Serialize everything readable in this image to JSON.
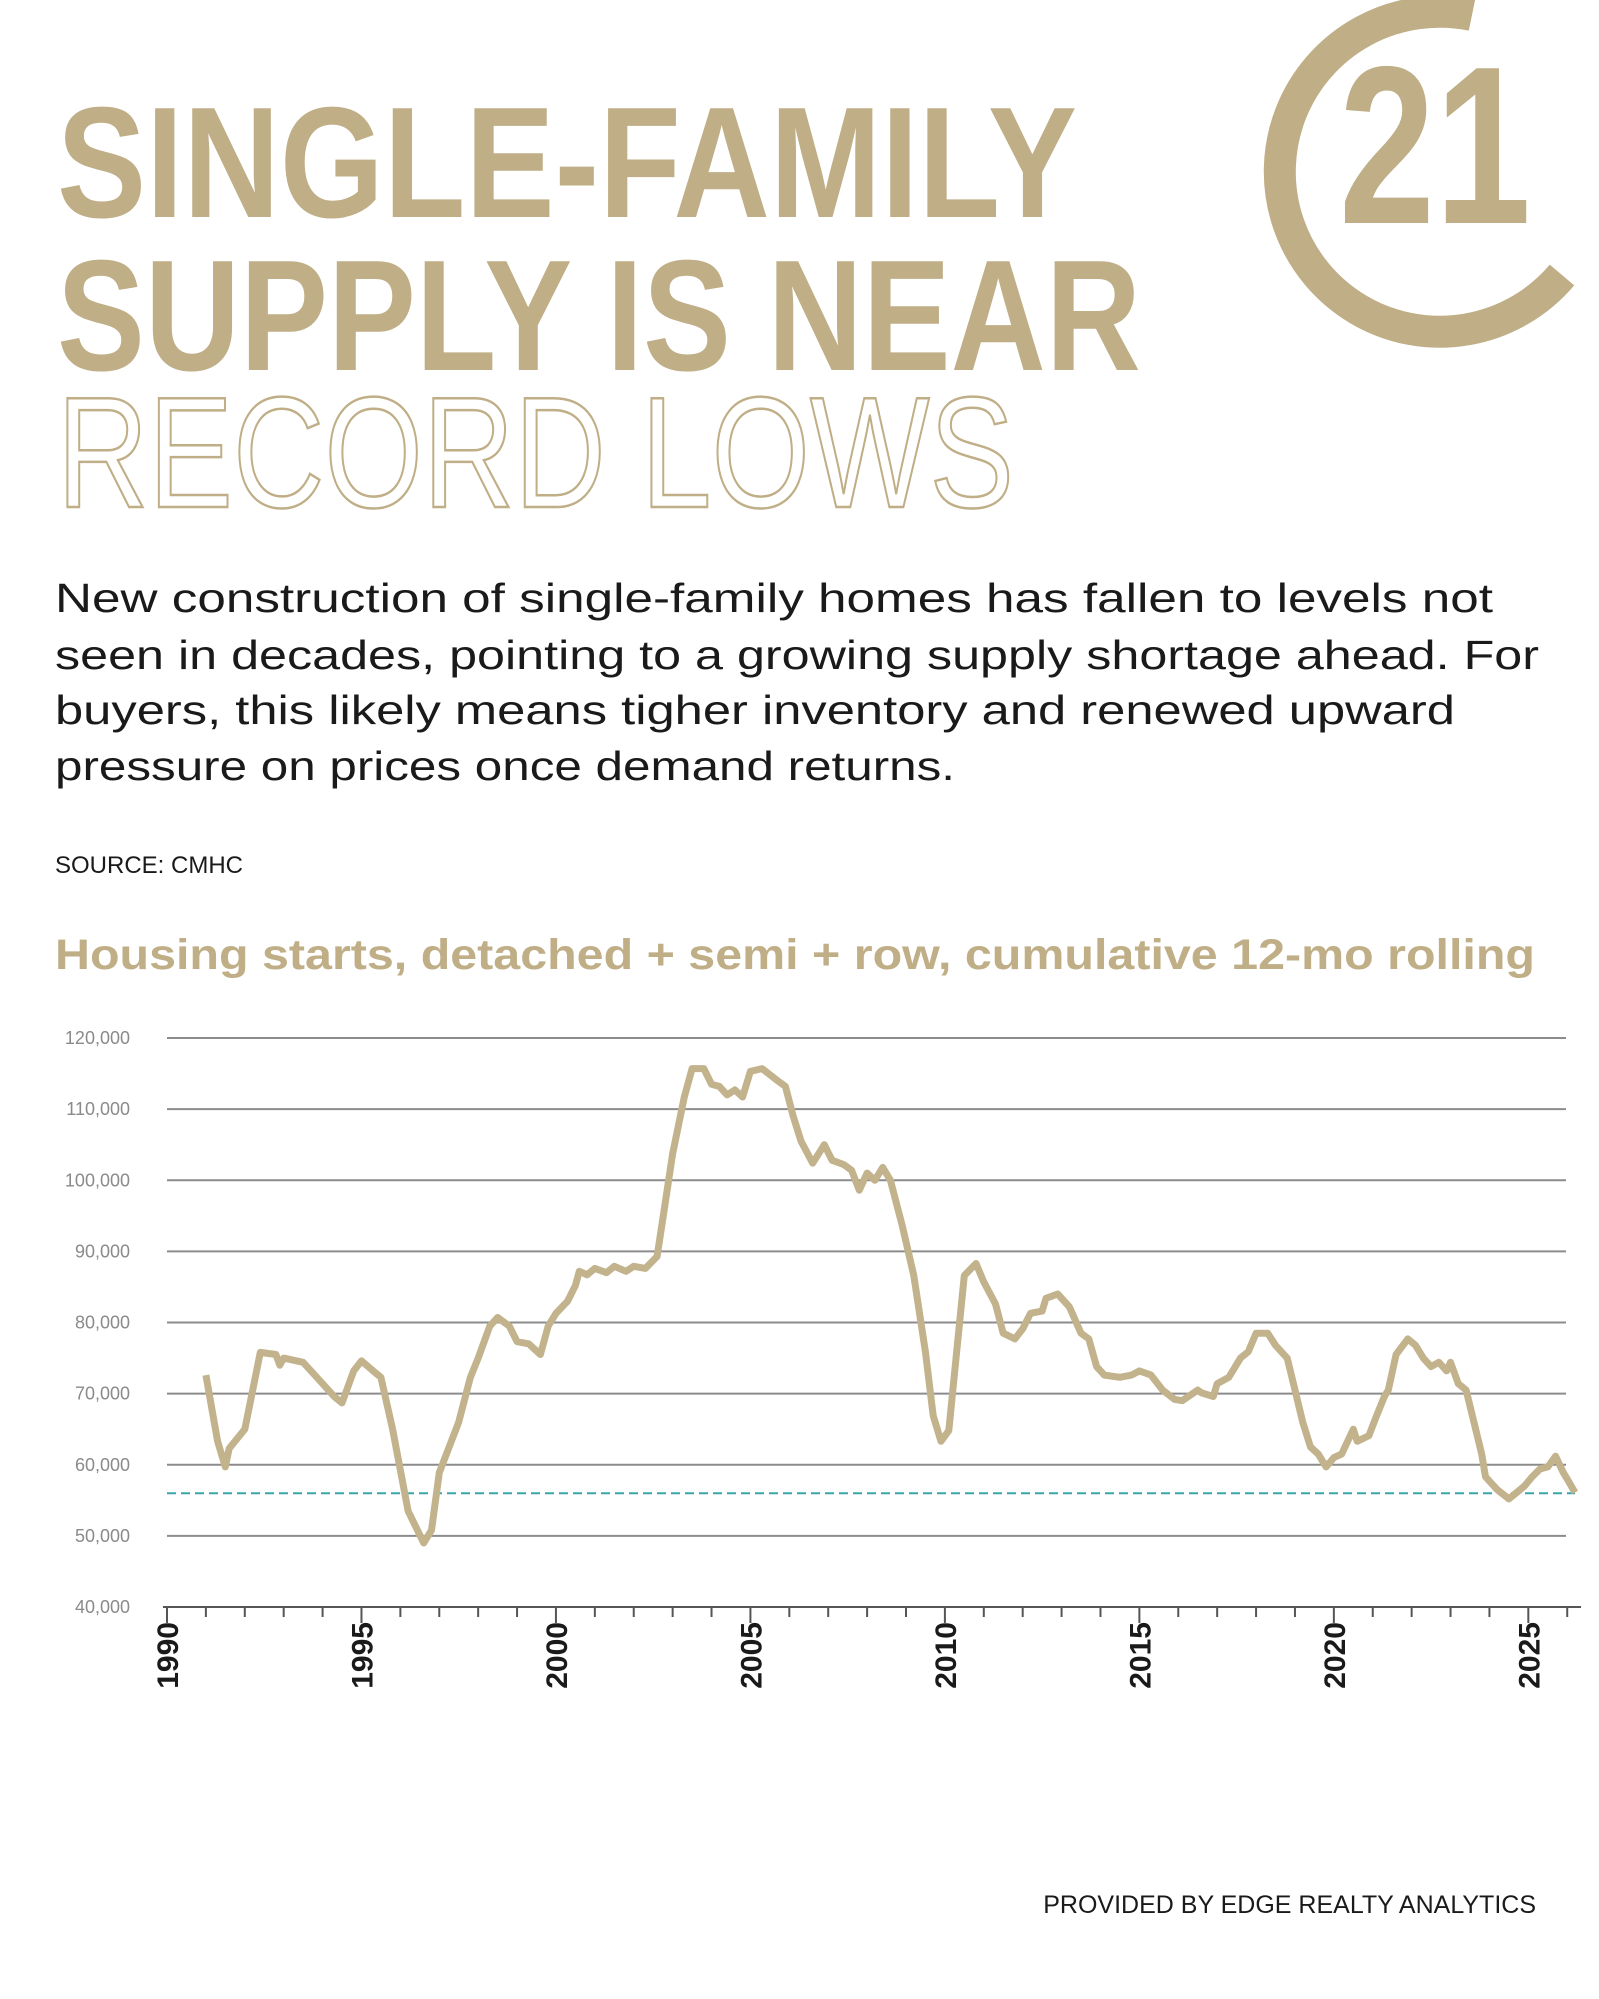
{
  "header": {
    "title_lines": [
      "SINGLE-FAMILY",
      "SUPPLY IS NEAR",
      "RECORD LOWS"
    ]
  },
  "logo": {
    "text": "21"
  },
  "description": {
    "lines": [
      "New construction of single-family homes has fallen to levels not",
      "seen in decades, pointing to a growing supply shortage ahead. For",
      "buyers, this likely means tigher inventory and renewed upward",
      "pressure on prices once demand returns."
    ]
  },
  "source": "SOURCE: CMHC",
  "chart_data": {
    "type": "line",
    "title": "Housing starts, detached + semi + row, cumulative 12-mo rolling",
    "color": "#c2b38d",
    "x": [
      1991.0,
      1991.3,
      1991.5,
      1991.6,
      1992.0,
      1992.4,
      1992.8,
      1992.9,
      1993.0,
      1993.5,
      1994.0,
      1994.3,
      1994.5,
      1994.8,
      1995.0,
      1995.3,
      1995.5,
      1995.8,
      1996.2,
      1996.6,
      1996.8,
      1997.0,
      1997.5,
      1997.8,
      1998.0,
      1998.3,
      1998.5,
      1998.8,
      1999.0,
      1999.3,
      1999.6,
      1999.8,
      2000.0,
      2000.3,
      2000.5,
      2000.6,
      2000.8,
      2001.0,
      2001.3,
      2001.5,
      2001.8,
      2002.0,
      2002.3,
      2002.6,
      2002.8,
      2003.0,
      2003.3,
      2003.5,
      2003.8,
      2004.0,
      2004.2,
      2004.4,
      2004.6,
      2004.8,
      2005.0,
      2005.3,
      2005.6,
      2005.9,
      2006.1,
      2006.3,
      2006.6,
      2006.9,
      2007.1,
      2007.4,
      2007.6,
      2007.8,
      2008.0,
      2008.2,
      2008.4,
      2008.6,
      2008.9,
      2009.2,
      2009.5,
      2009.7,
      2009.9,
      2010.1,
      2010.3,
      2010.5,
      2010.8,
      2011.0,
      2011.3,
      2011.5,
      2011.8,
      2012.0,
      2012.2,
      2012.5,
      2012.6,
      2012.9,
      2013.2,
      2013.5,
      2013.7,
      2013.9,
      2014.1,
      2014.5,
      2014.8,
      2015.0,
      2015.3,
      2015.6,
      2015.9,
      2016.1,
      2016.5,
      2016.6,
      2016.9,
      2017.0,
      2017.3,
      2017.6,
      2017.8,
      2018.0,
      2018.3,
      2018.5,
      2018.8,
      2019.0,
      2019.2,
      2019.4,
      2019.6,
      2019.8,
      2020.0,
      2020.2,
      2020.5,
      2020.6,
      2020.9,
      2021.1,
      2021.3,
      2021.4,
      2021.6,
      2021.9,
      2022.1,
      2022.3,
      2022.5,
      2022.7,
      2022.9,
      2023.0,
      2023.2,
      2023.4,
      2023.6,
      2023.8,
      2023.9,
      2024.2,
      2024.5,
      2024.7,
      2024.9,
      2025.1,
      2025.3,
      2025.5,
      2025.7,
      2025.9,
      2026.0,
      2026.2
    ],
    "values": [
      72600,
      63300,
      59700,
      62300,
      65000,
      75800,
      75500,
      74000,
      75000,
      74400,
      71400,
      69600,
      68700,
      73200,
      74600,
      73200,
      72300,
      65000,
      53500,
      49000,
      50800,
      58900,
      66000,
      72300,
      75000,
      79500,
      80700,
      79500,
      77300,
      77000,
      75500,
      79500,
      81300,
      83000,
      85200,
      87200,
      86700,
      87600,
      87000,
      87900,
      87200,
      87900,
      87600,
      89300,
      96500,
      103700,
      111700,
      115700,
      115700,
      113500,
      113200,
      112000,
      112700,
      111700,
      115300,
      115700,
      114400,
      113200,
      109000,
      105500,
      102400,
      105000,
      102800,
      102200,
      101400,
      98600,
      101000,
      100000,
      101800,
      100000,
      93700,
      86600,
      75800,
      66900,
      63300,
      64800,
      75800,
      86600,
      88300,
      85700,
      82600,
      78500,
      77700,
      79100,
      81300,
      81600,
      83400,
      84000,
      82200,
      78500,
      77700,
      73800,
      72600,
      72300,
      72600,
      73200,
      72600,
      70500,
      69200,
      69000,
      70500,
      70100,
      69600,
      71400,
      72300,
      75000,
      75900,
      78500,
      78500,
      76800,
      75000,
      70500,
      66000,
      62500,
      61500,
      59700,
      61000,
      61500,
      65000,
      63300,
      64100,
      66900,
      69600,
      70500,
      75500,
      77700,
      76800,
      75000,
      73800,
      74400,
      73200,
      74400,
      71400,
      70500,
      66000,
      61500,
      58300,
      56500,
      55200,
      56100,
      57000,
      58300,
      59400,
      59700,
      61200,
      58900,
      58000,
      56100
    ],
    "xlim": [
      1990,
      2026.2
    ],
    "xticks": [
      1990,
      1995,
      2000,
      2005,
      2010,
      2015,
      2020,
      2025
    ],
    "xminorticks": [
      1991,
      1992,
      1993,
      1994,
      1996,
      1997,
      1998,
      1999,
      2001,
      2002,
      2003,
      2004,
      2006,
      2007,
      2008,
      2009,
      2011,
      2012,
      2013,
      2014,
      2016,
      2017,
      2018,
      2019,
      2021,
      2022,
      2023,
      2024,
      2026
    ],
    "ylim": [
      40000,
      120000
    ],
    "yticks": [
      {
        "value": 40000,
        "label": "40,000"
      },
      {
        "value": 50000,
        "label": "50,000"
      },
      {
        "value": 60000,
        "label": "60,000"
      },
      {
        "value": 70000,
        "label": "70,000"
      },
      {
        "value": 80000,
        "label": "80,000"
      },
      {
        "value": 90000,
        "label": "90,000"
      },
      {
        "value": 100000,
        "label": "100,000"
      },
      {
        "value": 110000,
        "label": "110,000"
      },
      {
        "value": 120000,
        "label": "120,000"
      }
    ],
    "grid": true,
    "reference_line": {
      "value": 56000,
      "color": "#3aa6aa"
    }
  },
  "footer": "PROVIDED BY EDGE REALTY ANALYTICS"
}
